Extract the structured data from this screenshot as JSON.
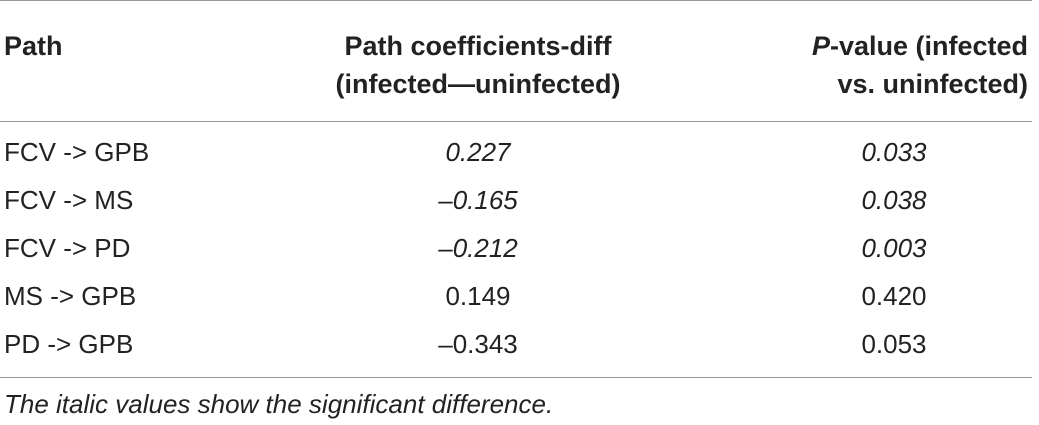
{
  "table": {
    "headers": {
      "path": "Path",
      "coef_line1": "Path coefficients-diff",
      "coef_line2": "(infected—uninfected)",
      "pval_italic": "P",
      "pval_line1_rest": "-value (infected",
      "pval_line2": "vs. uninfected)"
    },
    "rows": [
      {
        "path": "FCV -> GPB",
        "coef": "0.227",
        "pval": "0.033",
        "italic": true
      },
      {
        "path": "FCV -> MS",
        "coef": "–0.165",
        "pval": "0.038",
        "italic": true
      },
      {
        "path": "FCV -> PD",
        "coef": "–0.212",
        "pval": "0.003",
        "italic": true
      },
      {
        "path": "MS -> GPB",
        "coef": "0.149",
        "pval": "0.420",
        "italic": false
      },
      {
        "path": "PD -> GPB",
        "coef": "–0.343",
        "pval": "0.053",
        "italic": false
      }
    ],
    "footnote": "The italic values show the significant difference."
  }
}
